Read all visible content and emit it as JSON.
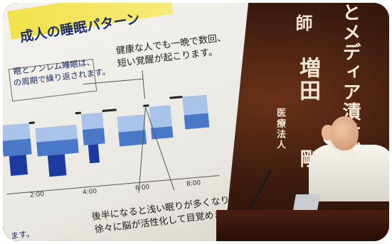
{
  "slide": {
    "title": "成人の睡眠パターン",
    "note_left_1": "眠とノンレム睡眠は、",
    "note_left_2": "の周期で繰り返されます。",
    "note_right_1": "健康な人でも一晩で数回、",
    "note_right_2": "短い覚醒が起こります。",
    "ticks": [
      "2:00",
      "4:00",
      "6:00",
      "8:00"
    ],
    "footer_left": "ます。",
    "footer_right_1": "後半になると浅い眠りが多くなり、",
    "footer_right_2": "徐々に脳が活性化して目覚めます。"
  },
  "banner": {
    "col_1": "とメディア漬けが",
    "col_2": "増田",
    "col_3": "剛",
    "col_4": "医療法人",
    "col_5": "師"
  },
  "colors": {
    "title_band": "#f2e14a",
    "title_text": "#1f2f6e",
    "bar_light": "#a9c4e8",
    "bar_mid": "#4a78c8",
    "bar_dark": "#1d3aa0"
  }
}
